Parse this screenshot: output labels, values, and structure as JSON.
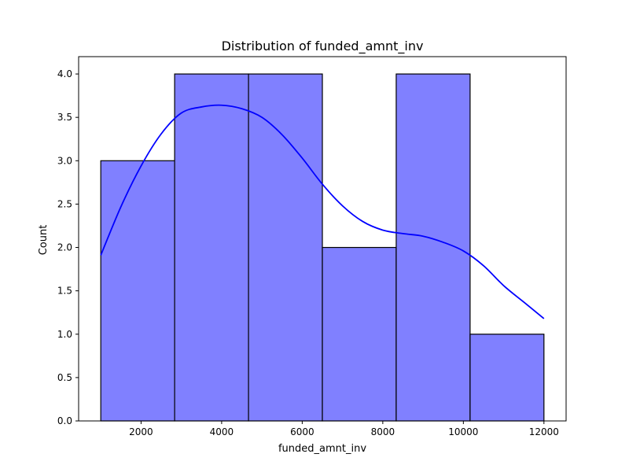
{
  "chart_data": {
    "type": "bar",
    "title": "Distribution of funded_amnt_inv",
    "xlabel": "funded_amnt_inv",
    "ylabel": "Count",
    "xlim": [
      450,
      12550
    ],
    "ylim": [
      0,
      4.2
    ],
    "x_ticks": [
      2000,
      4000,
      6000,
      8000,
      10000,
      12000
    ],
    "y_ticks": [
      0.0,
      0.5,
      1.0,
      1.5,
      2.0,
      2.5,
      3.0,
      3.5,
      4.0
    ],
    "x_tick_labels": [
      "2000",
      "4000",
      "6000",
      "8000",
      "10000",
      "12000"
    ],
    "y_tick_labels": [
      "0.0",
      "0.5",
      "1.0",
      "1.5",
      "2.0",
      "2.5",
      "3.0",
      "3.5",
      "4.0"
    ],
    "bins": [
      {
        "start": 1000,
        "end": 2833,
        "count": 3
      },
      {
        "start": 2833,
        "end": 4667,
        "count": 4
      },
      {
        "start": 4667,
        "end": 6500,
        "count": 4
      },
      {
        "start": 6500,
        "end": 8333,
        "count": 2
      },
      {
        "start": 8333,
        "end": 10167,
        "count": 4
      },
      {
        "start": 10167,
        "end": 12000,
        "count": 1
      }
    ],
    "kde": {
      "x": [
        1000,
        1500,
        2000,
        2500,
        3000,
        3500,
        4000,
        4500,
        5000,
        5500,
        6000,
        6500,
        7000,
        7500,
        8000,
        8500,
        9000,
        9500,
        10000,
        10500,
        11000,
        11500,
        12000
      ],
      "y": [
        1.91,
        2.47,
        2.94,
        3.31,
        3.55,
        3.62,
        3.64,
        3.6,
        3.5,
        3.3,
        3.03,
        2.73,
        2.48,
        2.3,
        2.2,
        2.16,
        2.13,
        2.06,
        1.96,
        1.79,
        1.56,
        1.37,
        1.18
      ]
    },
    "colors": {
      "bar_fill": "#8080ff",
      "bar_edge": "#000000",
      "kde_line": "#0000ff"
    },
    "grid": false,
    "legend": "none"
  }
}
